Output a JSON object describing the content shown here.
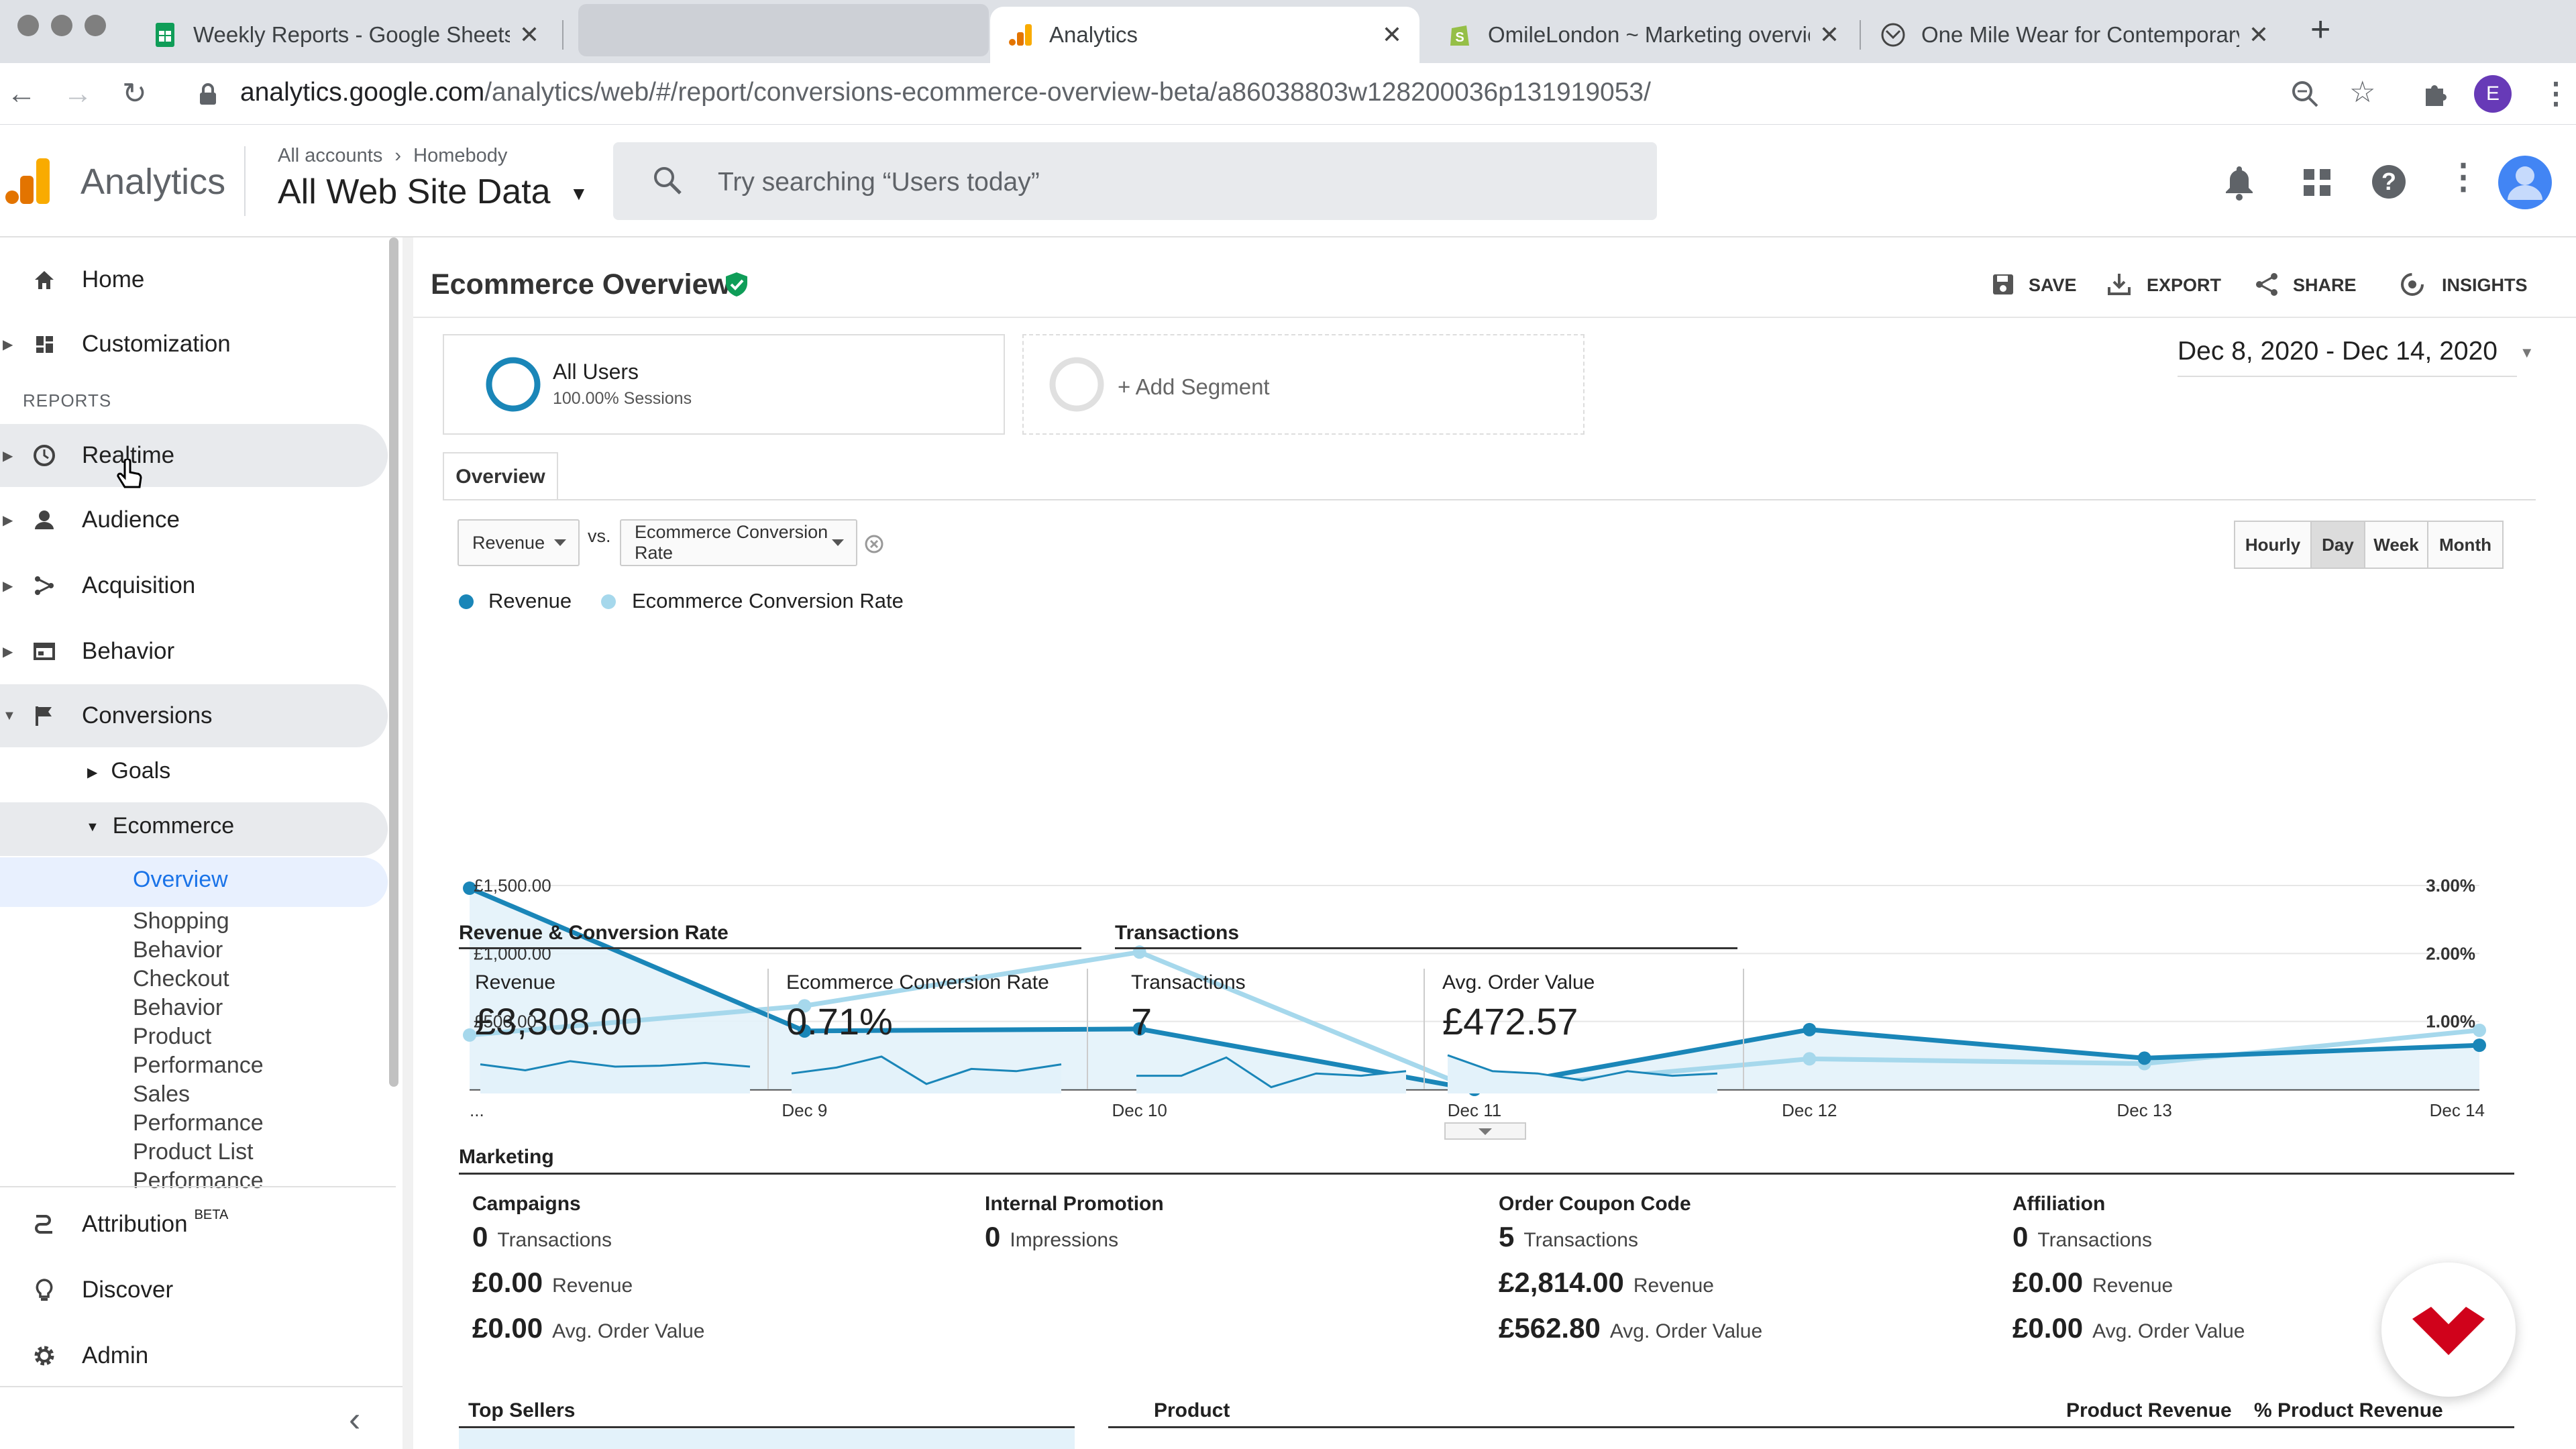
{
  "browser": {
    "tabs": [
      {
        "title": "Weekly Reports - Google Sheets",
        "icon": "sheets-icon"
      },
      {
        "title": "",
        "icon": ""
      },
      {
        "title": "Analytics",
        "icon": "analytics-icon"
      },
      {
        "title": "OmileLondon ~ Marketing overview",
        "icon": "shopify-icon"
      },
      {
        "title": "One Mile Wear for Contemporary",
        "icon": "onemile-icon"
      }
    ],
    "url_host": "analytics.google.com",
    "url_path": "/analytics/web/#/report/conversions-ecommerce-overview-beta/a86038803w128200036p131919053/",
    "profile_initial": "E"
  },
  "ga": {
    "product": "Analytics",
    "breadcrumb_root": "All accounts",
    "breadcrumb_sep": "›",
    "breadcrumb_account": "Homebody",
    "property_view": "All Web Site Data",
    "search_placeholder": "Try searching “Users today”"
  },
  "sidebar": {
    "home": "Home",
    "customization": "Customization",
    "reports_heading": "REPORTS",
    "realtime": "Realtime",
    "audience": "Audience",
    "acquisition": "Acquisition",
    "behavior": "Behavior",
    "conversions": "Conversions",
    "goals": "Goals",
    "ecommerce": "Ecommerce",
    "overview": "Overview",
    "sub_items": [
      "Shopping",
      "Behavior",
      "Checkout",
      "Behavior",
      "Product",
      "Performance",
      "Sales",
      "Performance",
      "Product List",
      "Performance"
    ],
    "attribution": "Attribution",
    "attribution_badge": "BETA",
    "discover": "Discover",
    "admin": "Admin",
    "collapse": "‹"
  },
  "report": {
    "title": "Ecommerce Overview",
    "actions": {
      "save": "SAVE",
      "export": "EXPORT",
      "share": "SHARE",
      "insights": "INSIGHTS"
    },
    "date_range": "Dec 8, 2020 - Dec 14, 2020",
    "segment_name": "All Users",
    "segment_sub": "100.00% Sessions",
    "add_segment": "+ Add Segment",
    "tab_overview": "Overview",
    "metric1": "Revenue",
    "vs": "vs.",
    "metric2": "Ecommerce Conversion Rate",
    "granularity": [
      "Hourly",
      "Day",
      "Week",
      "Month"
    ],
    "granularity_selected": "Day"
  },
  "chart_data": {
    "type": "line",
    "x": [
      "...",
      "Dec 9",
      "Dec 10",
      "Dec 11",
      "Dec 12",
      "Dec 13",
      "Dec 14"
    ],
    "series": [
      {
        "name": "Revenue",
        "axis": "left",
        "color": "#1a86b8",
        "values": [
          1480,
          430,
          445,
          0,
          440,
          230,
          325
        ]
      },
      {
        "name": "Ecommerce Conversion Rate",
        "axis": "right",
        "color": "#a6d8ec",
        "values": [
          0.8,
          1.23,
          2.02,
          0,
          0.45,
          0.38,
          0.87
        ]
      }
    ],
    "left_ticks": [
      "£1,500.00",
      "£1,000.00",
      "£500.00"
    ],
    "right_ticks": [
      "3.00%",
      "2.00%",
      "1.00%"
    ],
    "left_range": [
      0,
      1500
    ],
    "right_range": [
      0,
      3
    ],
    "grid": true,
    "legend": "top-left"
  },
  "kpis": {
    "group1_title": "Revenue & Conversion Rate",
    "group2_title": "Transactions",
    "items": [
      {
        "label": "Revenue",
        "value": "£3,308.00",
        "spark": [
          0.55,
          0.42,
          0.62,
          0.5,
          0.52,
          0.58,
          0.5
        ]
      },
      {
        "label": "Ecommerce Conversion Rate",
        "value": "0.71%",
        "spark": [
          0.35,
          0.48,
          0.72,
          0.12,
          0.45,
          0.4,
          0.55
        ]
      },
      {
        "label": "Transactions",
        "value": "7",
        "spark": [
          0.3,
          0.3,
          0.7,
          0.05,
          0.35,
          0.3,
          0.4
        ]
      },
      {
        "label": "Avg. Order Value",
        "value": "£472.57",
        "spark": [
          0.75,
          0.4,
          0.35,
          0.2,
          0.4,
          0.3,
          0.35
        ]
      }
    ]
  },
  "marketing": {
    "title": "Marketing",
    "columns": [
      {
        "title": "Campaigns",
        "rows": [
          [
            "0",
            "Transactions"
          ],
          [
            "£0.00",
            "Revenue"
          ],
          [
            "£0.00",
            "Avg. Order Value"
          ]
        ]
      },
      {
        "title": "Internal Promotion",
        "rows": [
          [
            "0",
            "Impressions"
          ]
        ]
      },
      {
        "title": "Order Coupon Code",
        "rows": [
          [
            "5",
            "Transactions"
          ],
          [
            "£2,814.00",
            "Revenue"
          ],
          [
            "£562.80",
            "Avg. Order Value"
          ]
        ]
      },
      {
        "title": "Affiliation",
        "rows": [
          [
            "0",
            "Transactions"
          ],
          [
            "£0.00",
            "Revenue"
          ],
          [
            "£0.00",
            "Avg. Order Value"
          ]
        ]
      }
    ]
  },
  "bottom": {
    "top_sellers": "Top Sellers",
    "product": "Product",
    "product_revenue": "Product Revenue",
    "pct_product_revenue": "% Product Revenue"
  },
  "colors": {
    "revenue": "#1a86b8",
    "conversion": "#a6d8ec",
    "ga_orange": "#f9ab00",
    "highlight": "#e8f0fe"
  }
}
